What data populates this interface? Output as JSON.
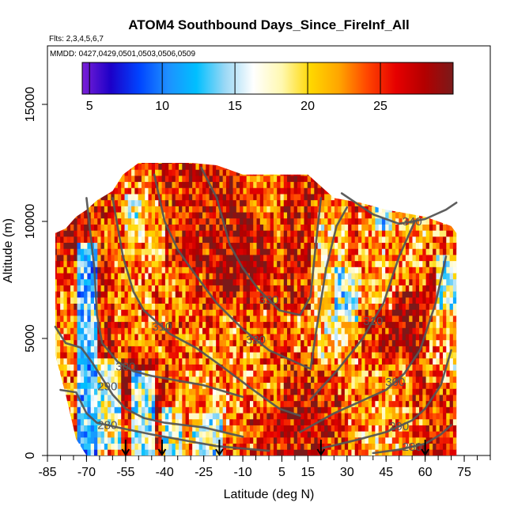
{
  "title": "ATOM4 Southbound Days_Since_FireInf_All",
  "flights_text": "Flts: 2,3,4,5,6,7",
  "mmdd_text": "MMDD: 0427,0429,0501,0503,0506,0509",
  "chart_data": {
    "type": "heatmap",
    "xlabel": "Latitude (deg N)",
    "ylabel": "Altitude (m)",
    "xlim": [
      -85,
      85
    ],
    "ylim": [
      0,
      17500
    ],
    "x_ticks": [
      -85,
      -70,
      -55,
      -40,
      -25,
      -10,
      5,
      15,
      30,
      45,
      60,
      75
    ],
    "x_minor_step": 5,
    "y_ticks": [
      0,
      5000,
      10000,
      15000
    ],
    "colorbar": {
      "min": 4.5,
      "max": 30,
      "ticks": [
        5,
        10,
        15,
        20,
        25
      ],
      "colors": [
        "#7b1fd6",
        "#1c00c8",
        "#0044ff",
        "#1e90ff",
        "#00bfff",
        "#9ad8f5",
        "#ffffff",
        "#fff8b0",
        "#ffd700",
        "#ffa500",
        "#ff4500",
        "#e60000",
        "#b30000",
        "#7a1a1a"
      ]
    },
    "envelope": [
      {
        "lat": -82,
        "alt_top": 9500,
        "alt_bot": 4300
      },
      {
        "lat": -78,
        "alt_top": 9700,
        "alt_bot": 2600
      },
      {
        "lat": -74,
        "alt_top": 10200,
        "alt_bot": 700
      },
      {
        "lat": -70,
        "alt_top": 10500,
        "alt_bot": 0
      },
      {
        "lat": -66,
        "alt_top": 10900,
        "alt_bot": 0
      },
      {
        "lat": -60,
        "alt_top": 11300,
        "alt_bot": 0
      },
      {
        "lat": -56,
        "alt_top": 12000,
        "alt_bot": 0
      },
      {
        "lat": -50,
        "alt_top": 12500,
        "alt_bot": 0
      },
      {
        "lat": -30,
        "alt_top": 12500,
        "alt_bot": 0
      },
      {
        "lat": -20,
        "alt_top": 12400,
        "alt_bot": 0
      },
      {
        "lat": -10,
        "alt_top": 12000,
        "alt_bot": 0
      },
      {
        "lat": 5,
        "alt_top": 12000,
        "alt_bot": 0
      },
      {
        "lat": 15,
        "alt_top": 12000,
        "alt_bot": 0
      },
      {
        "lat": 20,
        "alt_top": 11500,
        "alt_bot": 0
      },
      {
        "lat": 25,
        "alt_top": 11000,
        "alt_bot": 0
      },
      {
        "lat": 35,
        "alt_top": 10800,
        "alt_bot": 0
      },
      {
        "lat": 45,
        "alt_top": 10500,
        "alt_bot": 0
      },
      {
        "lat": 55,
        "alt_top": 10300,
        "alt_bot": 0
      },
      {
        "lat": 60,
        "alt_top": 10200,
        "alt_bot": 0
      },
      {
        "lat": 65,
        "alt_top": 10000,
        "alt_bot": 0
      },
      {
        "lat": 70,
        "alt_top": 9800,
        "alt_bot": 0
      },
      {
        "lat": 72,
        "alt_top": 9500,
        "alt_bot": 0
      }
    ],
    "data_regions": [
      {
        "lat_min": -74,
        "lat_max": -66,
        "alt_min": 0,
        "alt_max": 9000,
        "value": 8
      },
      {
        "lat_min": -66,
        "lat_max": -58,
        "alt_min": 200,
        "alt_max": 4000,
        "value": 13
      },
      {
        "lat_min": -54,
        "lat_max": -44,
        "alt_min": 0,
        "alt_max": 3500,
        "value": 10
      },
      {
        "lat_min": -56,
        "lat_max": -48,
        "alt_min": 9000,
        "alt_max": 11000,
        "value": 17
      },
      {
        "lat_min": -42,
        "lat_max": -34,
        "alt_min": 0,
        "alt_max": 2000,
        "value": 14
      },
      {
        "lat_min": -30,
        "lat_max": -18,
        "alt_min": 0,
        "alt_max": 1800,
        "value": 13
      },
      {
        "lat_min": -60,
        "lat_max": -40,
        "alt_min": 4000,
        "alt_max": 8000,
        "value": 22
      },
      {
        "lat_min": -20,
        "lat_max": 0,
        "alt_min": 4000,
        "alt_max": 6000,
        "value": 22
      },
      {
        "lat_min": -10,
        "lat_max": 5,
        "alt_min": 2000,
        "alt_max": 4000,
        "value": 22
      },
      {
        "lat_min": 5,
        "lat_max": 15,
        "alt_min": 6000,
        "alt_max": 12000,
        "value": 28
      },
      {
        "lat_min": -40,
        "lat_max": -10,
        "alt_min": 8000,
        "alt_max": 12500,
        "value": 27
      },
      {
        "lat_min": 18,
        "lat_max": 30,
        "alt_min": 4000,
        "alt_max": 11000,
        "value": 19
      },
      {
        "lat_min": 24,
        "lat_max": 34,
        "alt_min": 5500,
        "alt_max": 8000,
        "value": 14
      },
      {
        "lat_min": 34,
        "lat_max": 48,
        "alt_min": 6000,
        "alt_max": 10800,
        "value": 20
      },
      {
        "lat_min": 40,
        "lat_max": 46,
        "alt_min": 9500,
        "alt_max": 10800,
        "value": 12
      },
      {
        "lat_min": 48,
        "lat_max": 60,
        "alt_min": 7000,
        "alt_max": 10000,
        "value": 21
      },
      {
        "lat_min": 64,
        "lat_max": 72,
        "alt_min": 6000,
        "alt_max": 8500,
        "value": 12
      },
      {
        "lat_min": 60,
        "lat_max": 72,
        "alt_min": 3000,
        "alt_max": 6000,
        "value": 20
      },
      {
        "lat_min": 30,
        "lat_max": 55,
        "alt_min": 1000,
        "alt_max": 4000,
        "value": 22
      },
      {
        "lat_min": 66,
        "lat_max": 72,
        "alt_min": 0,
        "alt_max": 3000,
        "value": 23
      }
    ],
    "isentropes": [
      {
        "label": "280",
        "points": [
          [
            -80,
            2800
          ],
          [
            -74,
            2700
          ],
          [
            -70,
            1800
          ],
          [
            -66,
            1400
          ],
          [
            -58,
            1200
          ],
          [
            -45,
            900
          ],
          [
            -20,
            400
          ],
          [
            0,
            200
          ]
        ]
      },
      {
        "label": "280",
        "points": [
          [
            40,
            100
          ],
          [
            50,
            250
          ],
          [
            60,
            500
          ],
          [
            66,
            900
          ],
          [
            70,
            1300
          ]
        ]
      },
      {
        "label": "290",
        "points": [
          [
            -82,
            5500
          ],
          [
            -78,
            4800
          ],
          [
            -72,
            4600
          ],
          [
            -68,
            4000
          ],
          [
            -64,
            3300
          ],
          [
            -60,
            2600
          ],
          [
            -55,
            2000
          ],
          [
            -48,
            1600
          ],
          [
            -40,
            1400
          ],
          [
            -25,
            1200
          ],
          [
            -10,
            800
          ]
        ]
      },
      {
        "label": "290",
        "points": [
          [
            20,
            300
          ],
          [
            35,
            700
          ],
          [
            45,
            1000
          ],
          [
            55,
            1500
          ],
          [
            60,
            2000
          ],
          [
            66,
            3000
          ],
          [
            70,
            4500
          ]
        ]
      },
      {
        "label": "300",
        "points": [
          [
            -70,
            11000
          ],
          [
            -67,
            8000
          ],
          [
            -66,
            6000
          ],
          [
            -64,
            4800
          ],
          [
            -58,
            4000
          ],
          [
            -52,
            3600
          ],
          [
            -45,
            3400
          ],
          [
            -35,
            3200
          ],
          [
            -25,
            3000
          ],
          [
            -10,
            2500
          ]
        ]
      },
      {
        "label": "300",
        "points": [
          [
            12,
            1000
          ],
          [
            25,
            1800
          ],
          [
            35,
            2300
          ],
          [
            45,
            2800
          ],
          [
            52,
            3500
          ],
          [
            58,
            4500
          ],
          [
            64,
            6500
          ],
          [
            68,
            8500
          ]
        ]
      },
      {
        "label": "310",
        "points": [
          [
            -60,
            11000
          ],
          [
            -56,
            8500
          ],
          [
            -52,
            7000
          ],
          [
            -48,
            6200
          ],
          [
            -44,
            5800
          ],
          [
            -38,
            5200
          ],
          [
            -28,
            4600
          ],
          [
            -18,
            3800
          ],
          [
            -6,
            2800
          ],
          [
            4,
            2000
          ],
          [
            12,
            1700
          ]
        ]
      },
      {
        "label": "310",
        "points": [
          [
            16,
            2400
          ],
          [
            26,
            3600
          ],
          [
            36,
            5000
          ],
          [
            44,
            6500
          ],
          [
            50,
            8500
          ],
          [
            56,
            10000
          ]
        ]
      },
      {
        "label": "320",
        "points": [
          [
            -44,
            12000
          ],
          [
            -40,
            10000
          ],
          [
            -35,
            8800
          ],
          [
            -30,
            8000
          ],
          [
            -20,
            6500
          ],
          [
            -10,
            5400
          ],
          [
            0,
            4500
          ],
          [
            10,
            4000
          ],
          [
            16,
            3700
          ],
          [
            18,
            5200
          ],
          [
            22,
            8000
          ],
          [
            26,
            9800
          ],
          [
            30,
            10600
          ]
        ]
      },
      {
        "label": "330",
        "points": [
          [
            -26,
            12300
          ],
          [
            -20,
            11000
          ],
          [
            -15,
            9000
          ],
          [
            -10,
            8000
          ],
          [
            -4,
            7100
          ],
          [
            4,
            6200
          ],
          [
            12,
            6000
          ],
          [
            16,
            6800
          ],
          [
            18,
            9000
          ],
          [
            20,
            11000
          ]
        ]
      },
      {
        "label": "340",
        "points": [
          [
            28,
            11200
          ],
          [
            40,
            10300
          ],
          [
            50,
            9900
          ],
          [
            60,
            10100
          ],
          [
            68,
            10500
          ],
          [
            72,
            10800
          ]
        ]
      }
    ],
    "arrows_lat": [
      -55,
      -41,
      -19,
      20,
      60
    ]
  }
}
